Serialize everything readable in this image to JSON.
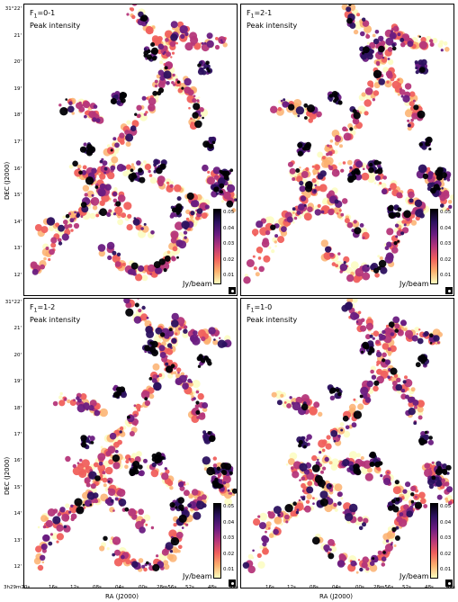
{
  "panels": [
    {
      "transition": "0-1",
      "subtitle": "Peak intensity"
    },
    {
      "transition": "2-1",
      "subtitle": "Peak intensity"
    },
    {
      "transition": "1-2",
      "subtitle": "Peak intensity"
    },
    {
      "transition": "1-0",
      "subtitle": "Peak intensity"
    }
  ],
  "title_prefix": "F",
  "title_sub": "1",
  "title_eq": "=",
  "unit": "Jy/beam",
  "colorbar_ticks": [
    "0.05",
    "0.04",
    "0.03",
    "0.02",
    "0.01"
  ],
  "dec_ticks": [
    "31°22'",
    "21'",
    "20'",
    "19'",
    "18'",
    "17'",
    "16'",
    "15'",
    "14'",
    "13'",
    "12'"
  ],
  "ra_ticks": [
    "3h29m20s",
    "16s",
    "12s",
    "08s",
    "04s",
    "00s",
    "28m56s",
    "52s",
    "48s",
    "44s"
  ],
  "ra_ticks_right": [
    "16s",
    "12s",
    "08s",
    "04s",
    "00s",
    "28m56s",
    "52s",
    "48s",
    "44s"
  ],
  "xlabel": "RA (J2000)",
  "ylabel": "DEC (J2000)",
  "colormap": [
    "#fcfdbf",
    "#fcb06e",
    "#f0605d",
    "#b5367a",
    "#6a1c81",
    "#2c115f",
    "#000004"
  ]
}
